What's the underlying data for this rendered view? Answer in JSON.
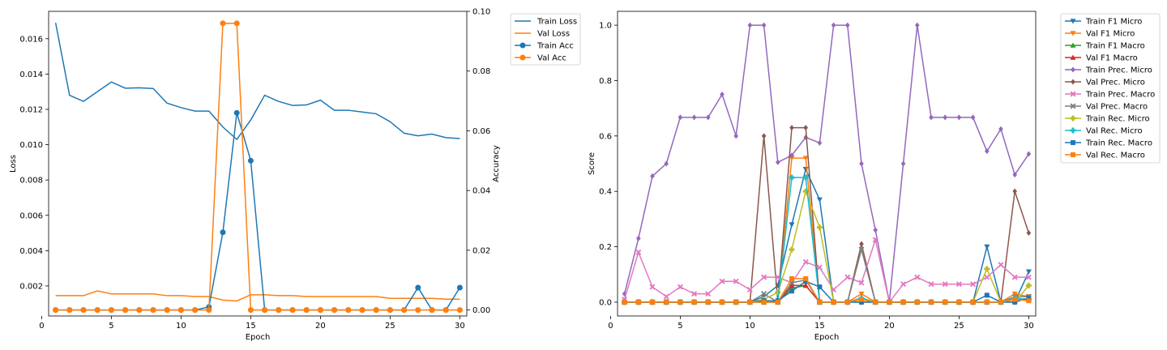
{
  "chart_data": [
    {
      "type": "line",
      "title": "",
      "x": [
        1,
        2,
        3,
        4,
        5,
        6,
        7,
        8,
        9,
        10,
        11,
        12,
        13,
        14,
        15,
        16,
        17,
        18,
        19,
        20,
        21,
        22,
        23,
        24,
        25,
        26,
        27,
        28,
        29,
        30
      ],
      "xlabel": "Epoch",
      "xlim": [
        0.5,
        30.5
      ],
      "xticks": [
        "0",
        "5",
        "10",
        "15",
        "20",
        "25",
        "30"
      ],
      "left_axis": {
        "label": "Loss",
        "ylim": [
          0.0003,
          0.01755
        ],
        "ticks": [
          "0.002",
          "0.004",
          "0.006",
          "0.008",
          "0.010",
          "0.012",
          "0.014",
          "0.016"
        ]
      },
      "right_axis": {
        "label": "Accuracy",
        "ylim": [
          -0.002,
          0.1
        ],
        "ticks": [
          "0.00",
          "0.02",
          "0.04",
          "0.06",
          "0.08",
          "0.10"
        ]
      },
      "series": [
        {
          "name": "Train Loss",
          "axis": "left",
          "color": "#1f77b4",
          "marker": "none",
          "values": [
            0.0169,
            0.0128,
            0.01245,
            0.013,
            0.01355,
            0.0132,
            0.01322,
            0.01318,
            0.01235,
            0.0121,
            0.0119,
            0.0119,
            0.011,
            0.0103,
            0.0114,
            0.0128,
            0.01245,
            0.01222,
            0.01225,
            0.01252,
            0.01195,
            0.01195,
            0.01185,
            0.01175,
            0.0113,
            0.01065,
            0.0105,
            0.0106,
            0.0104,
            0.01035
          ]
        },
        {
          "name": "Val Loss",
          "axis": "left",
          "color": "#ff7f0e",
          "marker": "none",
          "values": [
            0.00145,
            0.00145,
            0.00145,
            0.00172,
            0.00155,
            0.00155,
            0.00155,
            0.00155,
            0.00145,
            0.00145,
            0.0014,
            0.0014,
            0.0012,
            0.00115,
            0.0015,
            0.0015,
            0.00145,
            0.00145,
            0.0014,
            0.0014,
            0.0014,
            0.0014,
            0.0014,
            0.0014,
            0.0013,
            0.0013,
            0.0013,
            0.0013,
            0.00125,
            0.00125
          ]
        },
        {
          "name": "Train Acc",
          "axis": "right",
          "color": "#1f77b4",
          "marker": "o",
          "values": [
            0,
            0,
            0,
            0,
            0,
            0,
            0,
            0,
            0,
            0,
            0,
            0.001,
            0.026,
            0.066,
            0.05,
            0,
            0,
            0,
            0,
            0,
            0,
            0,
            0,
            0,
            0,
            0,
            0.0075,
            0,
            0,
            0.0075
          ]
        },
        {
          "name": "Val Acc",
          "axis": "right",
          "color": "#ff7f0e",
          "marker": "o",
          "values": [
            0,
            0,
            0,
            0,
            0,
            0,
            0,
            0,
            0,
            0,
            0,
            0,
            0.096,
            0.096,
            0,
            0,
            0,
            0,
            0,
            0,
            0,
            0,
            0,
            0,
            0,
            0,
            0,
            0,
            0,
            0
          ]
        }
      ]
    },
    {
      "type": "line",
      "title": "",
      "x": [
        1,
        2,
        3,
        4,
        5,
        6,
        7,
        8,
        9,
        10,
        11,
        12,
        13,
        14,
        15,
        16,
        17,
        18,
        19,
        20,
        21,
        22,
        23,
        24,
        25,
        26,
        27,
        28,
        29,
        30
      ],
      "xlabel": "Epoch",
      "ylabel": "Score",
      "xlim": [
        0.5,
        30.5
      ],
      "ylim": [
        -0.05,
        1.05
      ],
      "xticks": [
        "0",
        "5",
        "10",
        "15",
        "20",
        "25",
        "30"
      ],
      "yticks": [
        "0.0",
        "0.2",
        "0.4",
        "0.6",
        "0.8",
        "1.0"
      ],
      "series": [
        {
          "name": "Train F1 Micro",
          "color": "#1f77b4",
          "marker": "v",
          "values": [
            0,
            0,
            0,
            0,
            0,
            0,
            0,
            0,
            0,
            0,
            0.02,
            0.06,
            0.28,
            0.48,
            0.37,
            0,
            0,
            0,
            0,
            0,
            0,
            0,
            0,
            0,
            0,
            0,
            0.2,
            0,
            0,
            0.11
          ]
        },
        {
          "name": "Val F1 Micro",
          "color": "#ff7f0e",
          "marker": "v",
          "values": [
            0,
            0,
            0,
            0,
            0,
            0,
            0,
            0,
            0,
            0,
            0,
            0,
            0.52,
            0.52,
            0,
            0,
            0,
            0.03,
            0,
            0,
            0,
            0,
            0,
            0,
            0,
            0,
            0,
            0,
            0.03,
            0.02
          ]
        },
        {
          "name": "Train F1 Macro",
          "color": "#2ca02c",
          "marker": "^",
          "values": [
            0,
            0,
            0,
            0,
            0,
            0,
            0,
            0,
            0,
            0,
            0,
            0,
            0.05,
            0.06,
            0,
            0,
            0,
            0.01,
            0,
            0,
            0,
            0,
            0,
            0,
            0,
            0,
            0,
            0,
            0.01,
            0.01
          ]
        },
        {
          "name": "Val F1 Macro",
          "color": "#d62728",
          "marker": "^",
          "values": [
            0,
            0,
            0,
            0,
            0,
            0,
            0,
            0,
            0,
            0,
            0,
            0,
            0.06,
            0.06,
            0,
            0,
            0,
            0.01,
            0,
            0,
            0,
            0,
            0,
            0,
            0,
            0,
            0,
            0,
            0.01,
            0.01
          ]
        },
        {
          "name": "Train Prec. Micro",
          "color": "#9467bd",
          "marker": "D",
          "values": [
            0.03,
            0.23,
            0.455,
            0.5,
            0.667,
            0.667,
            0.667,
            0.75,
            0.6,
            1.0,
            1.0,
            0.505,
            0.53,
            0.595,
            0.575,
            1.0,
            1.0,
            0.5,
            0.26,
            0,
            0.5,
            1.0,
            0.667,
            0.667,
            0.667,
            0.667,
            0.545,
            0.625,
            0.46,
            0.535
          ]
        },
        {
          "name": "Val Prec. Micro",
          "color": "#8c564b",
          "marker": "D",
          "values": [
            0,
            0,
            0,
            0,
            0,
            0,
            0,
            0,
            0,
            0,
            0.6,
            0,
            0.63,
            0.63,
            0,
            0,
            0,
            0.21,
            0,
            0,
            0,
            0,
            0,
            0,
            0,
            0,
            0,
            0,
            0.4,
            0.25
          ]
        },
        {
          "name": "Train Prec. Macro",
          "color": "#e377c2",
          "marker": "X",
          "values": [
            0.01,
            0.18,
            0.055,
            0.02,
            0.055,
            0.03,
            0.03,
            0.075,
            0.075,
            0.045,
            0.09,
            0.09,
            0.07,
            0.145,
            0.125,
            0.045,
            0.09,
            0.07,
            0.225,
            0,
            0.065,
            0.09,
            0.065,
            0.065,
            0.065,
            0.065,
            0.09,
            0.135,
            0.09,
            0.09
          ]
        },
        {
          "name": "Val Prec. Macro",
          "color": "#7f7f7f",
          "marker": "X",
          "values": [
            0,
            0,
            0,
            0,
            0,
            0,
            0,
            0,
            0,
            0,
            0.03,
            0,
            0.07,
            0.08,
            0,
            0,
            0,
            0.19,
            0,
            0,
            0,
            0,
            0,
            0,
            0,
            0,
            0,
            0,
            0.02,
            0.02
          ]
        },
        {
          "name": "Train Rec. Micro",
          "color": "#bcbd22",
          "marker": "P",
          "values": [
            0,
            0,
            0,
            0,
            0,
            0,
            0,
            0,
            0,
            0,
            0.01,
            0.035,
            0.19,
            0.4,
            0.27,
            0,
            0,
            0,
            0,
            0,
            0,
            0,
            0,
            0,
            0,
            0,
            0.12,
            0,
            0,
            0.06
          ]
        },
        {
          "name": "Val Rec. Micro",
          "color": "#17becf",
          "marker": "P",
          "values": [
            0,
            0,
            0,
            0,
            0,
            0,
            0,
            0,
            0,
            0,
            0,
            0,
            0.45,
            0.45,
            0,
            0,
            0,
            0.015,
            0,
            0,
            0,
            0,
            0,
            0,
            0,
            0,
            0,
            0,
            0.015,
            0.01
          ]
        },
        {
          "name": "Train Rec. Macro",
          "color": "#1f77b4",
          "marker": "s",
          "values": [
            0,
            0,
            0,
            0,
            0,
            0,
            0,
            0,
            0,
            0,
            0.005,
            0.005,
            0.04,
            0.075,
            0.055,
            0,
            0,
            0,
            0,
            0,
            0,
            0,
            0,
            0,
            0,
            0,
            0.025,
            0,
            0,
            0.015
          ]
        },
        {
          "name": "Val Rec. Macro",
          "color": "#ff7f0e",
          "marker": "s",
          "values": [
            0,
            0,
            0,
            0,
            0,
            0,
            0,
            0,
            0,
            0,
            0,
            0,
            0.085,
            0.085,
            0,
            0,
            0,
            0.01,
            0,
            0,
            0,
            0,
            0,
            0,
            0,
            0,
            0,
            0,
            0.01,
            0.005
          ]
        }
      ]
    }
  ]
}
